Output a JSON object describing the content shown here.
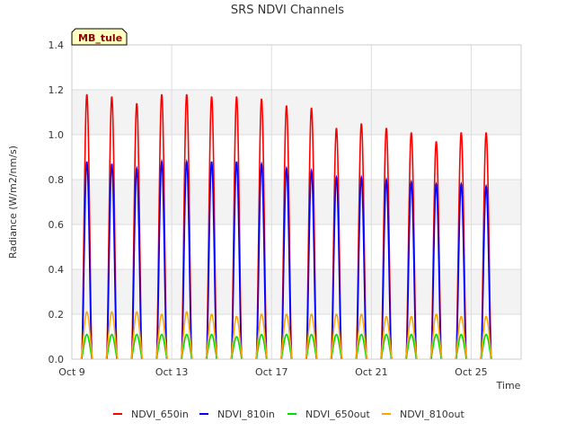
{
  "chart_data": {
    "type": "line",
    "title": "SRS NDVI Channels",
    "xlabel": "Time",
    "ylabel": "Radiance (W/m2/nm/s)",
    "site_label": "MB_tule",
    "ylim": [
      0.0,
      1.4
    ],
    "yticks": [
      "0.0",
      "0.2",
      "0.4",
      "0.6",
      "0.8",
      "1.0",
      "1.2",
      "1.4"
    ],
    "xlim": [
      "2024-10-09",
      "2024-10-27"
    ],
    "xticks": [
      {
        "date": "2024-10-09",
        "label": "Oct 9"
      },
      {
        "date": "2024-10-13",
        "label": "Oct 13"
      },
      {
        "date": "2024-10-17",
        "label": "Oct 17"
      },
      {
        "date": "2024-10-21",
        "label": "Oct 21"
      },
      {
        "date": "2024-10-25",
        "label": "Oct 25"
      }
    ],
    "grid": true,
    "legend_position": "bottom",
    "days": [
      "Oct 9",
      "Oct 10",
      "Oct 11",
      "Oct 12",
      "Oct 13",
      "Oct 14",
      "Oct 15",
      "Oct 16",
      "Oct 17",
      "Oct 18",
      "Oct 19",
      "Oct 20",
      "Oct 21",
      "Oct 22",
      "Oct 23",
      "Oct 24",
      "Oct 25",
      "Oct 26"
    ],
    "series": [
      {
        "name": "NDVI_650in",
        "color": "#ff0000",
        "daily_peak": [
          1.18,
          1.17,
          1.14,
          1.18,
          1.18,
          1.17,
          1.17,
          1.16,
          1.13,
          1.12,
          1.03,
          1.05,
          1.03,
          1.01,
          0.97,
          1.01,
          1.01,
          0.0
        ]
      },
      {
        "name": "NDVI_810in",
        "color": "#0000ff",
        "daily_peak": [
          0.88,
          0.87,
          0.85,
          0.88,
          0.88,
          0.88,
          0.88,
          0.87,
          0.85,
          0.84,
          0.81,
          0.81,
          0.8,
          0.79,
          0.78,
          0.78,
          0.77,
          0.0
        ]
      },
      {
        "name": "NDVI_650out",
        "color": "#00dd00",
        "daily_peak": [
          0.11,
          0.11,
          0.11,
          0.11,
          0.11,
          0.11,
          0.1,
          0.11,
          0.11,
          0.11,
          0.11,
          0.11,
          0.11,
          0.11,
          0.11,
          0.11,
          0.11,
          0.0
        ]
      },
      {
        "name": "NDVI_810out",
        "color": "#ffa500",
        "daily_peak": [
          0.21,
          0.21,
          0.21,
          0.2,
          0.21,
          0.2,
          0.19,
          0.2,
          0.2,
          0.2,
          0.2,
          0.2,
          0.19,
          0.19,
          0.2,
          0.19,
          0.19,
          0.0
        ]
      }
    ]
  }
}
